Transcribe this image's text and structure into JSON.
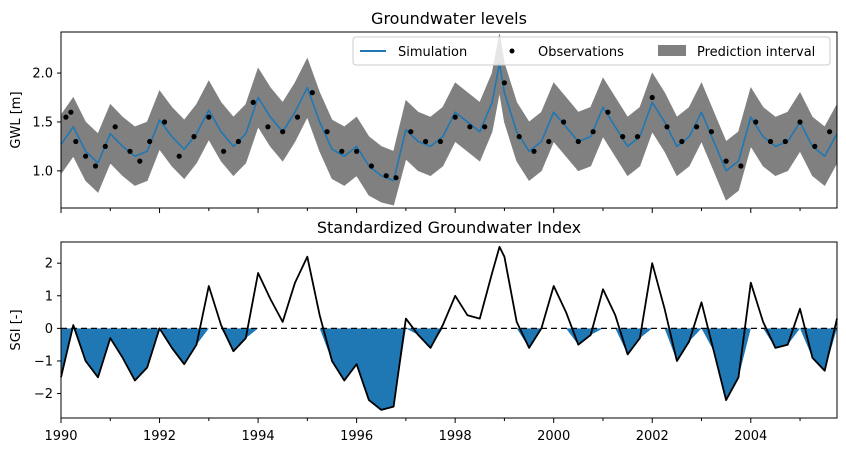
{
  "chart_data": [
    {
      "type": "line",
      "title": "Groundwater levels",
      "xlabel": "",
      "ylabel": "GWL [m]",
      "xlim": [
        1990.0,
        2005.75
      ],
      "ylim": [
        0.62,
        2.42
      ],
      "yticks": [
        1.0,
        1.5,
        2.0
      ],
      "ytick_labels": [
        "1.0",
        "1.5",
        "2.0"
      ],
      "grid": false,
      "legend": {
        "placement": "top-right",
        "entries": [
          {
            "label": "Simulation",
            "kind": "line",
            "color": "#1f77b4"
          },
          {
            "label": "Observations",
            "kind": "marker",
            "color": "#000000"
          },
          {
            "label": "Prediction interval",
            "kind": "patch",
            "color": "#808080"
          }
        ]
      },
      "colors": {
        "simulation": "#1f77b4",
        "observations": "#000000",
        "interval": "#808080"
      },
      "series": [
        {
          "name": "Simulation",
          "x": [
            1990.0,
            1990.25,
            1990.5,
            1990.75,
            1991.0,
            1991.25,
            1991.5,
            1991.75,
            1992.0,
            1992.25,
            1992.5,
            1992.75,
            1993.0,
            1993.25,
            1993.5,
            1993.75,
            1994.0,
            1994.25,
            1994.5,
            1994.75,
            1995.0,
            1995.25,
            1995.5,
            1995.75,
            1996.0,
            1996.25,
            1996.5,
            1996.75,
            1997.0,
            1997.25,
            1997.5,
            1997.75,
            1998.0,
            1998.25,
            1998.5,
            1998.75,
            1998.9,
            1999.0,
            1999.25,
            1999.5,
            1999.75,
            2000.0,
            2000.25,
            2000.5,
            2000.75,
            2001.0,
            2001.25,
            2001.5,
            2001.75,
            2002.0,
            2002.25,
            2002.5,
            2002.75,
            2003.0,
            2003.25,
            2003.5,
            2003.75,
            2004.0,
            2004.25,
            2004.5,
            2004.75,
            2005.0,
            2005.25,
            2005.5,
            2005.75
          ],
          "y": [
            1.27,
            1.45,
            1.2,
            1.08,
            1.38,
            1.25,
            1.15,
            1.2,
            1.52,
            1.35,
            1.22,
            1.38,
            1.62,
            1.4,
            1.25,
            1.38,
            1.75,
            1.55,
            1.4,
            1.6,
            1.85,
            1.5,
            1.22,
            1.15,
            1.25,
            1.05,
            0.95,
            0.9,
            1.42,
            1.3,
            1.25,
            1.35,
            1.6,
            1.5,
            1.4,
            1.7,
            2.1,
            1.8,
            1.4,
            1.2,
            1.3,
            1.6,
            1.45,
            1.3,
            1.35,
            1.65,
            1.45,
            1.25,
            1.35,
            1.7,
            1.5,
            1.25,
            1.35,
            1.6,
            1.3,
            1.0,
            1.1,
            1.55,
            1.35,
            1.25,
            1.3,
            1.5,
            1.25,
            1.15,
            1.38
          ]
        },
        {
          "name": "Observations",
          "x": [
            1990.1,
            1990.2,
            1990.3,
            1990.5,
            1990.7,
            1990.9,
            1991.1,
            1991.4,
            1991.6,
            1991.8,
            1992.1,
            1992.4,
            1992.7,
            1993.0,
            1993.3,
            1993.6,
            1993.9,
            1994.2,
            1994.5,
            1994.8,
            1995.1,
            1995.4,
            1995.7,
            1996.0,
            1996.3,
            1996.6,
            1996.8,
            1997.1,
            1997.4,
            1997.7,
            1998.0,
            1998.3,
            1998.6,
            1999.0,
            1999.3,
            1999.6,
            1999.9,
            2000.2,
            2000.5,
            2000.8,
            2001.1,
            2001.4,
            2001.7,
            2002.0,
            2002.3,
            2002.6,
            2002.9,
            2003.2,
            2003.5,
            2003.8,
            2004.1,
            2004.4,
            2004.7,
            2005.0,
            2005.3,
            2005.6
          ],
          "y": [
            1.55,
            1.6,
            1.3,
            1.15,
            1.05,
            1.25,
            1.45,
            1.2,
            1.1,
            1.3,
            1.5,
            1.15,
            1.35,
            1.55,
            1.2,
            1.3,
            1.7,
            1.45,
            1.4,
            1.55,
            1.8,
            1.4,
            1.2,
            1.2,
            1.05,
            0.95,
            0.93,
            1.4,
            1.3,
            1.3,
            1.55,
            1.45,
            1.45,
            1.9,
            1.35,
            1.2,
            1.3,
            1.5,
            1.3,
            1.4,
            1.6,
            1.35,
            1.35,
            1.75,
            1.45,
            1.3,
            1.45,
            1.4,
            1.1,
            1.05,
            1.5,
            1.3,
            1.3,
            1.5,
            1.25,
            1.4
          ]
        },
        {
          "name": "Prediction interval",
          "x": [
            1990.0,
            1990.25,
            1990.5,
            1990.75,
            1991.0,
            1991.25,
            1991.5,
            1991.75,
            1992.0,
            1992.25,
            1992.5,
            1992.75,
            1993.0,
            1993.25,
            1993.5,
            1993.75,
            1994.0,
            1994.25,
            1994.5,
            1994.75,
            1995.0,
            1995.25,
            1995.5,
            1995.75,
            1996.0,
            1996.25,
            1996.5,
            1996.75,
            1997.0,
            1997.25,
            1997.5,
            1997.75,
            1998.0,
            1998.25,
            1998.5,
            1998.75,
            1998.9,
            1999.0,
            1999.25,
            1999.5,
            1999.75,
            2000.0,
            2000.25,
            2000.5,
            2000.75,
            2001.0,
            2001.25,
            2001.5,
            2001.75,
            2002.0,
            2002.25,
            2002.5,
            2002.75,
            2003.0,
            2003.25,
            2003.5,
            2003.75,
            2004.0,
            2004.25,
            2004.5,
            2004.75,
            2005.0,
            2005.25,
            2005.5,
            2005.75
          ],
          "lower": [
            0.97,
            1.15,
            0.9,
            0.78,
            1.08,
            0.95,
            0.85,
            0.9,
            1.22,
            1.05,
            0.92,
            1.08,
            1.32,
            1.1,
            0.95,
            1.08,
            1.45,
            1.25,
            1.1,
            1.3,
            1.55,
            1.2,
            0.92,
            0.85,
            0.95,
            0.75,
            0.68,
            0.65,
            1.12,
            1.0,
            0.95,
            1.05,
            1.3,
            1.2,
            1.1,
            1.4,
            1.8,
            1.5,
            1.1,
            0.9,
            1.0,
            1.3,
            1.15,
            1.0,
            1.05,
            1.35,
            1.15,
            0.95,
            1.05,
            1.4,
            1.2,
            0.95,
            1.05,
            1.3,
            1.0,
            0.7,
            0.8,
            1.25,
            1.05,
            0.95,
            1.0,
            1.2,
            0.95,
            0.85,
            1.08
          ],
          "upper": [
            1.57,
            1.75,
            1.5,
            1.38,
            1.68,
            1.55,
            1.45,
            1.5,
            1.82,
            1.65,
            1.52,
            1.68,
            1.92,
            1.7,
            1.55,
            1.68,
            2.05,
            1.85,
            1.7,
            1.9,
            2.15,
            1.8,
            1.52,
            1.45,
            1.55,
            1.35,
            1.25,
            1.2,
            1.72,
            1.6,
            1.55,
            1.65,
            1.9,
            1.8,
            1.7,
            2.0,
            2.4,
            2.1,
            1.7,
            1.5,
            1.6,
            1.9,
            1.75,
            1.6,
            1.65,
            1.95,
            1.75,
            1.55,
            1.65,
            2.0,
            1.8,
            1.55,
            1.65,
            1.9,
            1.6,
            1.3,
            1.4,
            1.85,
            1.65,
            1.55,
            1.6,
            1.8,
            1.55,
            1.45,
            1.68
          ]
        }
      ]
    },
    {
      "type": "area",
      "title": "Standardized Groundwater Index",
      "xlabel": "",
      "ylabel": "SGI [-]",
      "xlim": [
        1990.0,
        2005.75
      ],
      "ylim": [
        -2.75,
        2.65
      ],
      "yticks": [
        -2,
        -1,
        0,
        1,
        2
      ],
      "ytick_labels": [
        "−2",
        "−1",
        "0",
        "1",
        "2"
      ],
      "xticks": [
        1990,
        1992,
        1994,
        1996,
        1998,
        2000,
        2002,
        2004
      ],
      "xtick_labels": [
        "1990",
        "1992",
        "1994",
        "1996",
        "1998",
        "2000",
        "2002",
        "2004"
      ],
      "reference_line": 0,
      "grid": false,
      "colors": {
        "line": "#000000",
        "fill_below_zero": "#1f77b4"
      },
      "series": [
        {
          "name": "SGI",
          "x": [
            1990.0,
            1990.25,
            1990.5,
            1990.75,
            1991.0,
            1991.25,
            1991.5,
            1991.75,
            1992.0,
            1992.25,
            1992.5,
            1992.75,
            1993.0,
            1993.25,
            1993.5,
            1993.75,
            1994.0,
            1994.25,
            1994.5,
            1994.75,
            1995.0,
            1995.25,
            1995.5,
            1995.75,
            1996.0,
            1996.25,
            1996.5,
            1996.75,
            1997.0,
            1997.25,
            1997.5,
            1997.75,
            1998.0,
            1998.25,
            1998.5,
            1998.75,
            1998.9,
            1999.0,
            1999.25,
            1999.5,
            1999.75,
            2000.0,
            2000.25,
            2000.5,
            2000.75,
            2001.0,
            2001.25,
            2001.5,
            2001.75,
            2002.0,
            2002.25,
            2002.5,
            2002.75,
            2003.0,
            2003.25,
            2003.5,
            2003.75,
            2004.0,
            2004.25,
            2004.5,
            2004.75,
            2005.0,
            2005.25,
            2005.5,
            2005.75
          ],
          "y": [
            -1.5,
            0.1,
            -1.0,
            -1.5,
            -0.3,
            -0.9,
            -1.6,
            -1.2,
            0.0,
            -0.6,
            -1.1,
            -0.5,
            1.3,
            0.1,
            -0.7,
            -0.3,
            1.7,
            0.9,
            0.2,
            1.4,
            2.2,
            0.4,
            -1.0,
            -1.6,
            -1.1,
            -2.2,
            -2.5,
            -2.4,
            0.3,
            -0.2,
            -0.6,
            0.1,
            1.0,
            0.4,
            0.3,
            1.7,
            2.5,
            2.2,
            0.2,
            -0.6,
            0.0,
            1.3,
            0.5,
            -0.5,
            -0.2,
            1.2,
            0.4,
            -0.8,
            -0.3,
            2.0,
            0.6,
            -1.0,
            -0.4,
            0.8,
            -0.7,
            -2.2,
            -1.5,
            1.4,
            0.2,
            -0.6,
            -0.5,
            0.6,
            -0.9,
            -1.3,
            0.3
          ]
        }
      ]
    }
  ]
}
